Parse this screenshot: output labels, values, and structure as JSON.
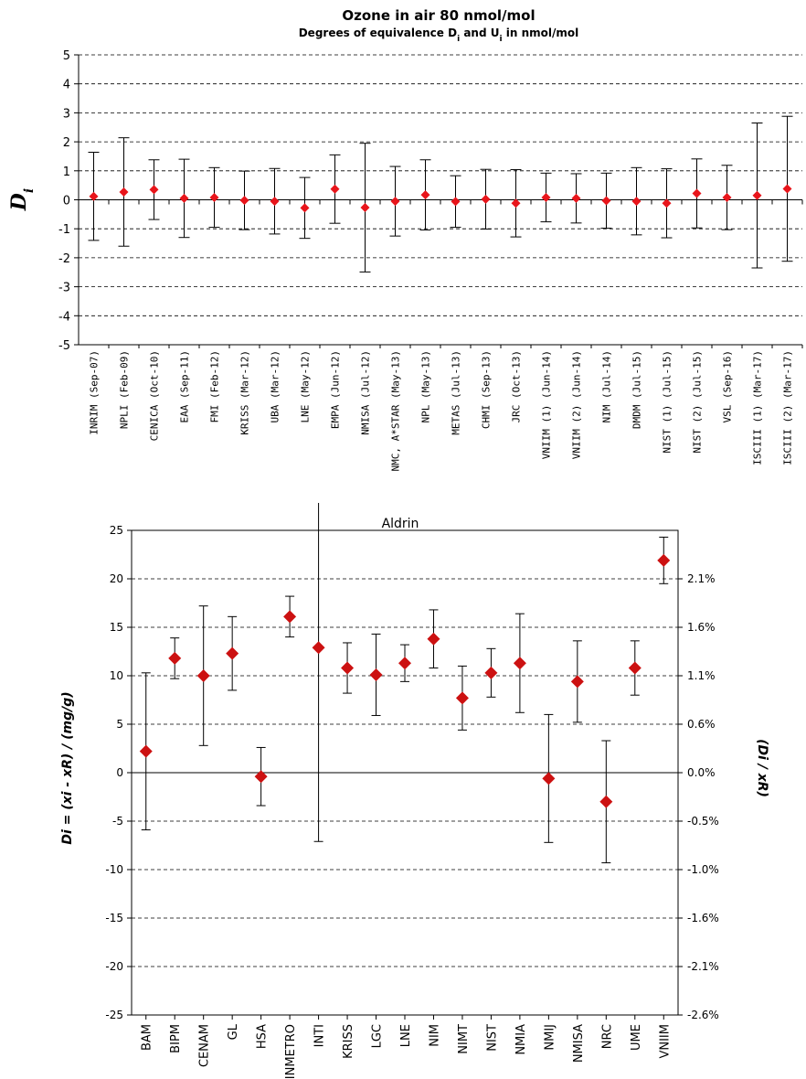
{
  "chart_data": [
    {
      "type": "scatter",
      "title": "Ozone in air    80 nmol/mol",
      "subtitle": "Degrees of equivalence D",
      "subtitle_sub1": "i",
      "subtitle_mid": " and U",
      "subtitle_sub2": "i",
      "subtitle_end": " in nmol/mol",
      "ylabel": "D",
      "ylabel_sub": "i",
      "ylim": [
        -5,
        5
      ],
      "yticks": [
        "5",
        "4",
        "3",
        "2",
        "1",
        "0",
        "-1",
        "-2",
        "-3",
        "-4",
        "-5"
      ],
      "grid": true,
      "marker_color": "#e8151b",
      "categories": [
        "INRIM (Sep-07)",
        "NPLI (Feb-09)",
        "CENICA (Oct-10)",
        "EAA (Sep-11)",
        "FMI (Feb-12)",
        "KRISS (Mar-12)",
        "UBA (Mar-12)",
        "LNE (May-12)",
        "EMPA (Jun-12)",
        "NMISA (Jul-12)",
        "NMC, A*STAR (May-13)",
        "NPL (May-13)",
        "METAS (Jul-13)",
        "CHMI (Sep-13)",
        "JRC (Oct-13)",
        "VNIIM (1) (Jun-14)",
        "VNIIM (2) (Jun-14)",
        "NIM (Jul-14)",
        "DMDM (Jul-15)",
        "NIST (1) (Jul-15)",
        "NIST (2) (Jul-15)",
        "VSL (Sep-16)",
        "ISCIII (1) (Mar-17)",
        "ISCIII (2) (Mar-17)"
      ],
      "values": [
        0.12,
        0.27,
        0.35,
        0.05,
        0.08,
        -0.02,
        -0.05,
        -0.28,
        0.37,
        -0.27,
        -0.05,
        0.17,
        -0.06,
        0.02,
        -0.12,
        0.08,
        0.05,
        -0.03,
        -0.05,
        -0.12,
        0.22,
        0.08,
        0.15,
        0.38
      ],
      "uncertainty": [
        1.52,
        1.87,
        1.03,
        1.35,
        1.03,
        1.01,
        1.13,
        1.05,
        1.18,
        2.22,
        1.2,
        1.21,
        0.89,
        1.03,
        1.16,
        0.84,
        0.85,
        0.95,
        1.16,
        1.19,
        1.19,
        1.11,
        2.5,
        2.5
      ]
    },
    {
      "type": "scatter",
      "title": "Aldrin",
      "ylabel": "Di = (xi - xR) / (mg/g)",
      "ylabel_right": "(Di / xR)",
      "ylim": [
        -25,
        25
      ],
      "yticks": [
        "25",
        "20",
        "15",
        "10",
        "5",
        "0",
        "-5",
        "-10",
        "-15",
        "-20",
        "-25"
      ],
      "yticks_right": [
        "2.1%",
        "1.6%",
        "1.1%",
        "0.6%",
        "0.0%",
        "-0.5%",
        "-1.0%",
        "-1.6%",
        "-2.1%",
        "-2.6%"
      ],
      "grid": true,
      "marker_color": "#cc1111",
      "categories": [
        "BAM",
        "BIPM",
        "CENAM",
        "GL",
        "HSA",
        "INMETRO",
        "INTI",
        "KRISS",
        "LGC",
        "LNE",
        "NIM",
        "NIMT",
        "NIST",
        "NMIA",
        "NMIJ",
        "NMISA",
        "NRC",
        "UME",
        "VNIIM"
      ],
      "values": [
        2.2,
        11.8,
        10.0,
        12.3,
        -0.4,
        16.1,
        12.9,
        10.8,
        10.1,
        11.3,
        13.8,
        7.7,
        10.3,
        11.3,
        -0.6,
        9.4,
        -3.0,
        10.8,
        21.9
      ],
      "uncertainty": [
        8.1,
        2.1,
        7.2,
        3.8,
        3.0,
        2.1,
        20.0,
        2.6,
        4.2,
        1.9,
        3.0,
        3.3,
        2.5,
        5.1,
        6.6,
        4.2,
        6.3,
        2.8,
        2.4
      ]
    }
  ]
}
